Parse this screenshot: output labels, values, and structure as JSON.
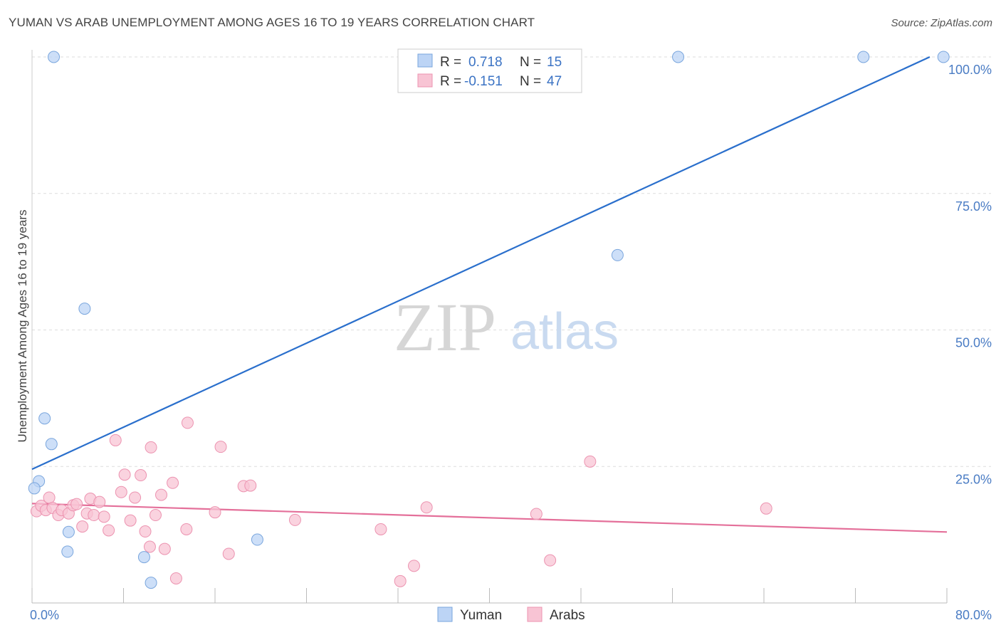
{
  "title": "YUMAN VS ARAB UNEMPLOYMENT AMONG AGES 16 TO 19 YEARS CORRELATION CHART",
  "source": "Source: ZipAtlas.com",
  "watermark": {
    "zip": "ZIP",
    "atlas": "atlas"
  },
  "colors": {
    "yuman_fill": "#bcd4f5",
    "yuman_stroke": "#7aa6dd",
    "yuman_line": "#2a6fcc",
    "arab_fill": "#f8c4d4",
    "arab_stroke": "#ec93b0",
    "arab_line": "#e4709a",
    "grid": "#dddddd",
    "axis_text": "#4a7cc4"
  },
  "legend": {
    "yuman_r_label": "R =",
    "yuman_r": "0.718",
    "yuman_n_label": "N =",
    "yuman_n": "15",
    "arab_r_label": "R =",
    "arab_r": "-0.151",
    "arab_n_label": "N =",
    "arab_n": "47"
  },
  "chart_data": {
    "type": "scatter",
    "title": "YUMAN VS ARAB UNEMPLOYMENT AMONG AGES 16 TO 19 YEARS CORRELATION CHART",
    "xlabel": "",
    "ylabel": "Unemployment Among Ages 16 to 19 years",
    "xlim": [
      0,
      80
    ],
    "ylim": [
      0,
      105
    ],
    "x_tick_labels": [
      "0.0%",
      "80.0%"
    ],
    "y_ticks": [
      25,
      50,
      75,
      100
    ],
    "y_tick_labels": [
      "25.0%",
      "50.0%",
      "75.0%",
      "100.0%"
    ],
    "grid": true,
    "legend_position": "top-center",
    "series": [
      {
        "name": "Yuman",
        "points": [
          [
            1.9,
            100
          ],
          [
            56.5,
            100
          ],
          [
            72.7,
            100
          ],
          [
            79.7,
            100
          ],
          [
            51.2,
            63.7
          ],
          [
            4.6,
            53.9
          ],
          [
            1.1,
            33.8
          ],
          [
            1.7,
            29.1
          ],
          [
            0.6,
            22.3
          ],
          [
            0.2,
            21.0
          ],
          [
            3.2,
            13.0
          ],
          [
            3.1,
            9.4
          ],
          [
            9.8,
            8.4
          ],
          [
            10.4,
            3.7
          ],
          [
            19.7,
            11.6
          ]
        ],
        "trend": [
          [
            0,
            24.5
          ],
          [
            78.5,
            100
          ]
        ]
      },
      {
        "name": "Arabs",
        "points": [
          [
            0.4,
            16.8
          ],
          [
            0.8,
            17.8
          ],
          [
            1.2,
            17.0
          ],
          [
            1.5,
            19.3
          ],
          [
            1.8,
            17.4
          ],
          [
            2.3,
            16.1
          ],
          [
            2.6,
            17.0
          ],
          [
            3.2,
            16.4
          ],
          [
            3.6,
            17.9
          ],
          [
            3.9,
            18.1
          ],
          [
            4.4,
            14.0
          ],
          [
            4.8,
            16.4
          ],
          [
            5.1,
            19.1
          ],
          [
            5.4,
            16.1
          ],
          [
            5.9,
            18.5
          ],
          [
            6.3,
            15.8
          ],
          [
            6.7,
            13.3
          ],
          [
            7.3,
            29.8
          ],
          [
            7.8,
            20.3
          ],
          [
            8.1,
            23.5
          ],
          [
            8.6,
            15.1
          ],
          [
            9.0,
            19.3
          ],
          [
            9.5,
            23.4
          ],
          [
            9.9,
            13.1
          ],
          [
            10.3,
            10.3
          ],
          [
            10.4,
            28.5
          ],
          [
            10.8,
            16.1
          ],
          [
            11.3,
            19.8
          ],
          [
            11.6,
            9.9
          ],
          [
            12.3,
            22.0
          ],
          [
            12.6,
            4.5
          ],
          [
            13.5,
            13.5
          ],
          [
            13.6,
            33.0
          ],
          [
            16.0,
            16.6
          ],
          [
            16.5,
            28.6
          ],
          [
            17.2,
            9.0
          ],
          [
            18.5,
            21.4
          ],
          [
            19.1,
            21.5
          ],
          [
            23.0,
            15.2
          ],
          [
            30.5,
            13.5
          ],
          [
            32.2,
            4.0
          ],
          [
            33.4,
            6.8
          ],
          [
            34.5,
            17.5
          ],
          [
            44.1,
            16.3
          ],
          [
            45.3,
            7.8
          ],
          [
            48.8,
            25.9
          ],
          [
            64.2,
            17.3
          ]
        ],
        "trend": [
          [
            0,
            18.2
          ],
          [
            80,
            13.0
          ]
        ]
      }
    ]
  },
  "bottom_legend": {
    "yuman": "Yuman",
    "arabs": "Arabs"
  }
}
